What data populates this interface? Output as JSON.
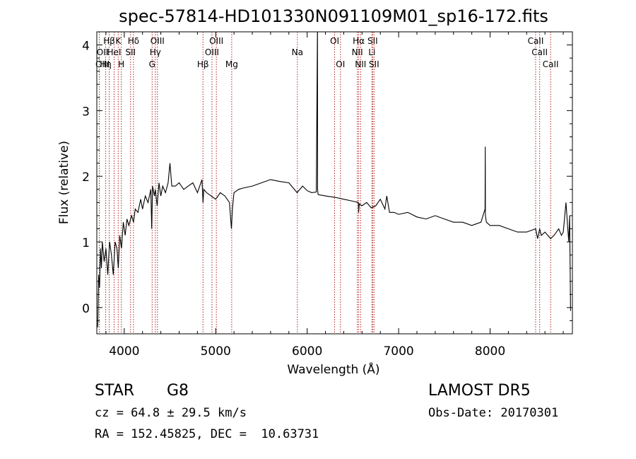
{
  "chart_data": {
    "type": "line",
    "title": "spec-57814-HD101330N091109M01_sp16-172.fits",
    "xlabel": "Wavelength (Å)",
    "ylabel": "Flux (relative)",
    "xlim": [
      3700,
      8900
    ],
    "ylim": [
      -0.4,
      4.2
    ],
    "xticks": [
      4000,
      5000,
      6000,
      7000,
      8000
    ],
    "yticks": [
      0,
      1,
      2,
      3,
      4
    ],
    "grid": false,
    "line_color": "#000000",
    "line_marker_color": "#b22222",
    "series": [
      {
        "x": [
          3710,
          3720,
          3730,
          3740,
          3750,
          3760,
          3780,
          3800,
          3820,
          3840,
          3860,
          3880,
          3900,
          3920,
          3935,
          3950,
          3970,
          3990,
          4010,
          4030,
          4050,
          4080,
          4101,
          4120,
          4150,
          4180,
          4200,
          4230,
          4260,
          4290,
          4300,
          4310,
          4330,
          4340,
          4360,
          4380,
          4400,
          4420,
          4450,
          4480,
          4500,
          4520,
          4560,
          4600,
          4650,
          4700,
          4750,
          4800,
          4850,
          4861,
          4870,
          4900,
          4950,
          5000,
          5050,
          5100,
          5150,
          5172,
          5183,
          5200,
          5250,
          5300,
          5400,
          5500,
          5600,
          5700,
          5800,
          5890,
          5950,
          6000,
          6050,
          6100,
          6112,
          6113,
          6114,
          6120,
          6200,
          6300,
          6400,
          6500,
          6560,
          6563,
          6570,
          6600,
          6650,
          6700,
          6750,
          6800,
          6850,
          6870,
          6900,
          6950,
          7000,
          7100,
          7200,
          7300,
          7400,
          7500,
          7600,
          7700,
          7800,
          7900,
          7945,
          7947,
          7949,
          7960,
          8000,
          8100,
          8200,
          8300,
          8400,
          8498,
          8520,
          8542,
          8560,
          8600,
          8662,
          8700,
          8750,
          8780,
          8800,
          8830,
          8860,
          8870,
          8880
        ],
        "y": [
          -0.3,
          0.5,
          0.3,
          0.9,
          0.6,
          1.0,
          0.7,
          0.9,
          0.5,
          1.0,
          0.8,
          0.5,
          1.0,
          0.9,
          0.6,
          1.1,
          0.9,
          1.3,
          1.1,
          1.35,
          1.25,
          1.4,
          1.3,
          1.5,
          1.45,
          1.65,
          1.5,
          1.7,
          1.6,
          1.8,
          1.2,
          1.85,
          1.7,
          1.8,
          1.55,
          1.9,
          1.7,
          1.85,
          1.75,
          1.9,
          2.2,
          1.85,
          1.85,
          1.9,
          1.8,
          1.85,
          1.9,
          1.75,
          1.95,
          1.6,
          1.8,
          1.75,
          1.7,
          1.65,
          1.75,
          1.7,
          1.6,
          1.2,
          1.5,
          1.75,
          1.8,
          1.82,
          1.85,
          1.9,
          1.95,
          1.92,
          1.9,
          1.75,
          1.85,
          1.78,
          1.75,
          1.76,
          4.2,
          4.2,
          1.8,
          1.72,
          1.7,
          1.68,
          1.65,
          1.62,
          1.6,
          1.45,
          1.58,
          1.55,
          1.6,
          1.52,
          1.55,
          1.65,
          1.5,
          1.7,
          1.45,
          1.45,
          1.42,
          1.45,
          1.38,
          1.35,
          1.4,
          1.35,
          1.3,
          1.3,
          1.25,
          1.3,
          1.5,
          2.45,
          1.4,
          1.3,
          1.25,
          1.25,
          1.2,
          1.15,
          1.15,
          1.2,
          1.05,
          1.2,
          1.1,
          1.15,
          1.05,
          1.1,
          1.2,
          1.1,
          1.15,
          1.6,
          1.0,
          1.4,
          -0.05
        ]
      }
    ],
    "annotations": [
      {
        "text": "Hβ",
        "x": 3835,
        "row": 0
      },
      {
        "text": "K",
        "x": 3934,
        "row": 0
      },
      {
        "text": "Hδ",
        "x": 4101,
        "row": 0
      },
      {
        "text": "OIII",
        "x": 4363,
        "row": 0
      },
      {
        "text": "OIII",
        "x": 5007,
        "row": 0
      },
      {
        "text": "OI",
        "x": 6300,
        "row": 0
      },
      {
        "text": "Hα",
        "x": 6563,
        "row": 0
      },
      {
        "text": "SII",
        "x": 6716,
        "row": 0
      },
      {
        "text": "CaII",
        "x": 8498,
        "row": 0
      },
      {
        "text": "OII",
        "x": 3727,
        "row": 1
      },
      {
        "text": "HeI",
        "x": 3889,
        "row": 1
      },
      {
        "text": "SII",
        "x": 4069,
        "row": 1
      },
      {
        "text": "Hγ",
        "x": 4340,
        "row": 1
      },
      {
        "text": "OIII",
        "x": 4959,
        "row": 1
      },
      {
        "text": "Na",
        "x": 5893,
        "row": 1
      },
      {
        "text": "NII",
        "x": 6548,
        "row": 1
      },
      {
        "text": "Li",
        "x": 6708,
        "row": 1
      },
      {
        "text": "CaII",
        "x": 8542,
        "row": 1
      },
      {
        "text": "OIII",
        "x": 3700,
        "row": 2
      },
      {
        "text": "Hη",
        "x": 3797,
        "row": 2
      },
      {
        "text": "H",
        "x": 3968,
        "row": 2
      },
      {
        "text": "G",
        "x": 4305,
        "row": 2
      },
      {
        "text": "Hβ",
        "x": 4861,
        "row": 2
      },
      {
        "text": "Mg",
        "x": 5175,
        "row": 2
      },
      {
        "text": "OI",
        "x": 6364,
        "row": 2
      },
      {
        "text": "NII",
        "x": 6584,
        "row": 2
      },
      {
        "text": "SII",
        "x": 6731,
        "row": 2
      },
      {
        "text": "CaII",
        "x": 8662,
        "row": 2
      }
    ],
    "line_positions": [
      3727,
      3797,
      3835,
      3889,
      3934,
      3968,
      4069,
      4101,
      4305,
      4340,
      4363,
      4861,
      4959,
      5007,
      5175,
      5893,
      6300,
      6364,
      6548,
      6563,
      6584,
      6708,
      6716,
      6731,
      8498,
      8542,
      8662
    ]
  },
  "info": {
    "object_class": "STAR",
    "subclass": "G8",
    "survey": "LAMOST DR5",
    "cz": "cz = 64.8 ± 29.5 km/s",
    "obs_date": "Obs-Date: 20170301",
    "coords": "RA = 152.45825, DEC =  10.63731"
  }
}
